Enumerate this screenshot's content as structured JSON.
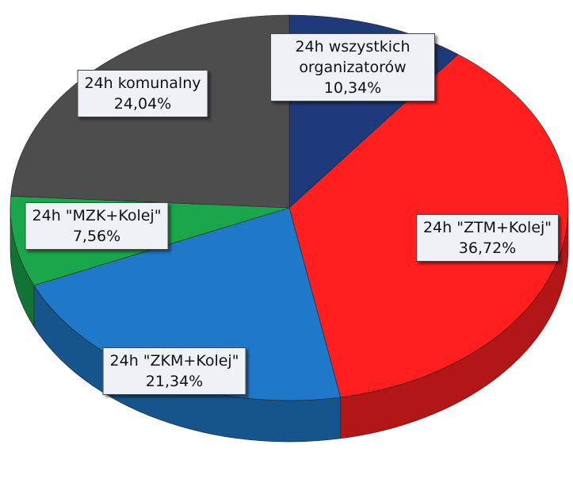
{
  "chart_data": {
    "type": "pie",
    "categories": [
      "24h wszystkich organizatorów",
      "24h \"ZTM+Kolej\"",
      "24h \"ZKM+Kolej\"",
      "24h \"MZK+Kolej\"",
      "24h komunalny"
    ],
    "values": [
      10.34,
      36.72,
      21.34,
      7.56,
      24.04
    ],
    "value_labels": [
      "10,34%",
      "36,72%",
      "21,34%",
      "7,56%",
      "24,04%"
    ],
    "colors": [
      "#1f3a7a",
      "#ff1f1f",
      "#1f78c8",
      "#1aa64a",
      "#4d4d4d"
    ]
  }
}
